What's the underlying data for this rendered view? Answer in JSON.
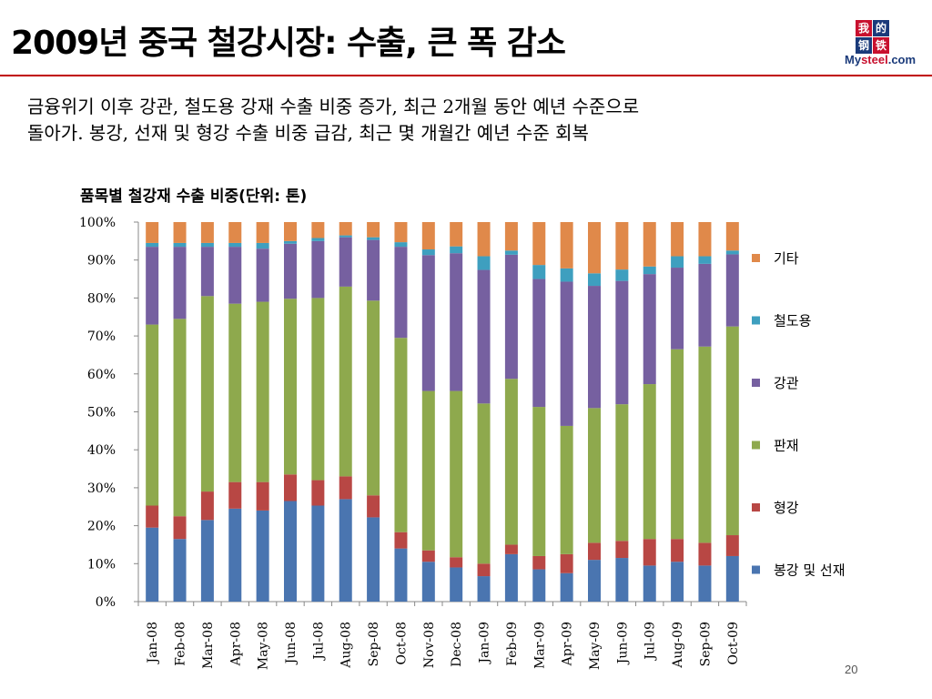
{
  "slide": {
    "title": "2009년 중국 철강시장: 수출, 큰 폭 감소",
    "subtitle_line1": "금융위기 이후 강관, 철도용 강재 수출 비중 증가, 최근 2개월 동안 예년 수준으로",
    "subtitle_line2": "돌아가. 봉강, 선재 및 형강 수출 비중 급감, 최근 몇 개월간 예년 수준 회복",
    "page_number": "20"
  },
  "logo": {
    "chars": [
      "我",
      "的",
      "钢",
      "铁"
    ],
    "word_prefix": "My",
    "word_mid": "steel",
    "word_suffix": ".com",
    "colors": [
      "#c8102e",
      "#1a3a7a",
      "#1a3a7a",
      "#c8102e"
    ]
  },
  "chart_data": {
    "type": "bar",
    "stacked": true,
    "percent": true,
    "title": "품목별 철강재 수출 비중(단위: 톤)",
    "xlabel": "",
    "ylabel": "",
    "ylim": [
      0,
      100
    ],
    "yticks": [
      "0%",
      "10%",
      "20%",
      "30%",
      "40%",
      "50%",
      "60%",
      "70%",
      "80%",
      "90%",
      "100%"
    ],
    "categories": [
      "Jan-08",
      "Feb-08",
      "Mar-08",
      "Apr-08",
      "May-08",
      "Jun-08",
      "Jul-08",
      "Aug-08",
      "Sep-08",
      "Oct-08",
      "Nov-08",
      "Dec-08",
      "Jan-09",
      "Feb-09",
      "Mar-09",
      "Apr-09",
      "May-09",
      "Jun-09",
      "Jul-09",
      "Aug-09",
      "Sep-09",
      "Oct-09"
    ],
    "grid": false,
    "legend_position": "right",
    "series": [
      {
        "name": "봉강 및 선재",
        "color": "#4a75b0",
        "values": [
          19.5,
          16.5,
          21.5,
          24.5,
          24,
          26.5,
          25.3,
          27,
          22.2,
          14,
          10.5,
          9,
          6.7,
          12.5,
          8.5,
          7.5,
          11,
          11.5,
          9.5,
          10.5,
          9.5,
          12
        ]
      },
      {
        "name": "형강",
        "color": "#b84744",
        "values": [
          5.8,
          6,
          7.5,
          7,
          7.5,
          7,
          6.7,
          6,
          5.8,
          4.3,
          3,
          2.7,
          3.3,
          2.5,
          3.5,
          5,
          4.5,
          4.5,
          7,
          6,
          6,
          5.5
        ]
      },
      {
        "name": "판재",
        "color": "#8ea94d",
        "values": [
          47.7,
          52,
          51.5,
          47,
          47.5,
          46.3,
          48,
          50,
          51.3,
          51.2,
          42,
          43.8,
          42.2,
          43.7,
          39.3,
          33.8,
          35.5,
          36,
          40.8,
          50,
          51.7,
          55
        ]
      },
      {
        "name": "강관",
        "color": "#7660a0",
        "values": [
          20.5,
          19,
          13,
          15,
          14,
          14.5,
          15,
          13,
          16,
          24,
          35.8,
          36.3,
          35.2,
          32.7,
          33.7,
          38,
          32.2,
          32.5,
          29,
          21.5,
          21.8,
          19
        ]
      },
      {
        "name": "철도용",
        "color": "#3e9fbf",
        "values": [
          1,
          1,
          1,
          1,
          1.5,
          0.7,
          0.8,
          0.5,
          0.7,
          1.2,
          1.5,
          1.8,
          3.6,
          1.1,
          3.7,
          3.5,
          3.3,
          3,
          2,
          3,
          2,
          1
        ]
      },
      {
        "name": "기타",
        "color": "#e0894a",
        "values": [
          5.5,
          5.5,
          5.5,
          5.5,
          5.5,
          5,
          4.2,
          3.5,
          4,
          5.3,
          7.2,
          6.4,
          9,
          7.5,
          11.3,
          12.2,
          13.5,
          12.5,
          11.7,
          9,
          9,
          7.5
        ]
      }
    ]
  }
}
